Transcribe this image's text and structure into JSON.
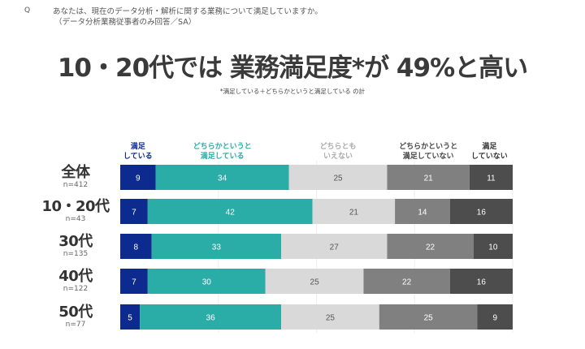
{
  "question": {
    "marker": "Q",
    "line1": "あなたは、現在のデータ分析・解析に関する業務について満足していますか。",
    "line2": "（データ分析業務従事者のみ回答／SA）"
  },
  "headline": "10・20代では 業務満足度*が 49%と高い",
  "footnote": "*満足している＋どちらかというと満足している の計",
  "chart_data": {
    "type": "bar",
    "orientation": "horizontal",
    "stacked": true,
    "xlim": [
      0,
      100
    ],
    "grid": true,
    "legend_placement": "top",
    "series": [
      {
        "name": "満足している",
        "legend": [
          "満足",
          "している"
        ],
        "color": "#0d2b8e",
        "text_color": "#ffffff",
        "values": [
          9,
          7,
          8,
          7,
          5
        ]
      },
      {
        "name": "どちらかというと満足している",
        "legend": [
          "どちらかというと",
          "満足している"
        ],
        "color": "#2aada6",
        "text_color": "#ffffff",
        "values": [
          34,
          42,
          33,
          30,
          36
        ]
      },
      {
        "name": "どちらともいえない",
        "legend": [
          "どちらとも",
          "いえない"
        ],
        "color": "#d9d9d9",
        "text_color": "#555555",
        "values": [
          25,
          21,
          27,
          25,
          25
        ]
      },
      {
        "name": "どちらかというと満足していない",
        "legend": [
          "どちらかというと",
          "満足していない"
        ],
        "color": "#808080",
        "text_color": "#ffffff",
        "values": [
          21,
          14,
          22,
          22,
          25
        ]
      },
      {
        "name": "満足していない",
        "legend": [
          "満足",
          "していない"
        ],
        "color": "#4d4d4d",
        "text_color": "#ffffff",
        "values": [
          11,
          16,
          10,
          16,
          9
        ]
      }
    ],
    "categories": [
      {
        "label": "全体",
        "n": "n=412"
      },
      {
        "label": "10・20代",
        "n": "n=43"
      },
      {
        "label": "30代",
        "n": "n=135"
      },
      {
        "label": "40代",
        "n": "n=122"
      },
      {
        "label": "50代",
        "n": "n=77"
      }
    ],
    "legend_colors": [
      "#0d2b8e",
      "#2aada6",
      "#aaaaaa",
      "#444444",
      "#333333"
    ]
  }
}
